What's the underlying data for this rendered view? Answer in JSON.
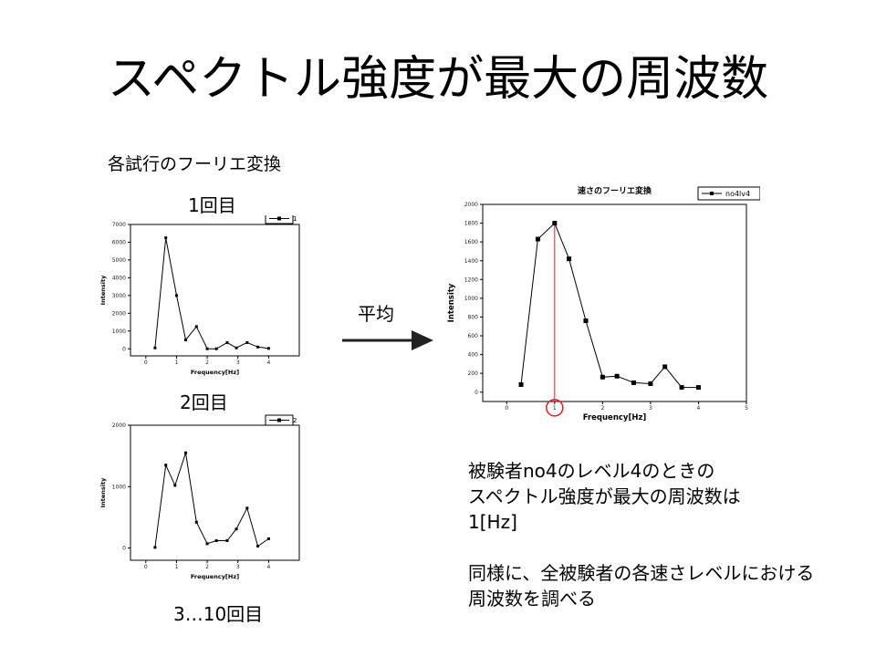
{
  "slide": {
    "title": "スペクトル強度が最大の周波数",
    "subtitle": "各試行のフーリエ変換",
    "trial1_label": "1回目",
    "trial2_label": "2回目",
    "trial3_label": "3…10回目",
    "average_label": "平均",
    "description": [
      "被験者no4のレベル4のときの",
      "スペクトル強度が最大の周波数は",
      "1[Hz]",
      "",
      "同様に、全被験者の各速さレベルにおける",
      "周波数を調べる"
    ]
  },
  "chart_data": [
    {
      "type": "line",
      "title": "",
      "xlabel": "Frequency[Hz]",
      "ylabel": "Intensity",
      "xlim": [
        -0.5,
        5
      ],
      "ylim": [
        -400,
        7000
      ],
      "xticks": [
        0,
        1,
        2,
        3,
        4
      ],
      "yticks": [
        0,
        1000,
        2000,
        3000,
        4000,
        5000,
        6000,
        7000
      ],
      "legend": "top-right",
      "series": [
        {
          "name": "1",
          "x": [
            0.3,
            0.65,
            1.0,
            1.3,
            1.65,
            2.0,
            2.3,
            2.65,
            2.95,
            3.3,
            3.65,
            4.0
          ],
          "values": [
            50,
            6250,
            3000,
            500,
            1250,
            0,
            0,
            350,
            50,
            350,
            100,
            20
          ]
        }
      ]
    },
    {
      "type": "line",
      "title": "",
      "xlabel": "Frequency[Hz]",
      "ylabel": "Intensity",
      "xlim": [
        -0.5,
        5
      ],
      "ylim": [
        -200,
        2000
      ],
      "xticks": [
        0,
        1,
        2,
        3,
        4
      ],
      "yticks": [
        0,
        1000,
        2000
      ],
      "legend": "top-right",
      "series": [
        {
          "name": "2",
          "x": [
            0.3,
            0.65,
            0.95,
            1.3,
            1.65,
            2.0,
            2.3,
            2.65,
            2.95,
            3.3,
            3.65,
            4.0
          ],
          "values": [
            10,
            1350,
            1020,
            1550,
            420,
            70,
            120,
            120,
            310,
            650,
            30,
            150
          ]
        }
      ]
    },
    {
      "type": "line",
      "title": "速さのフーリエ変換",
      "xlabel": "Frequency[Hz]",
      "ylabel": "Intensity",
      "xlim": [
        -0.5,
        5
      ],
      "ylim": [
        -100,
        2000
      ],
      "xticks": [
        0,
        1,
        2,
        3,
        4,
        5
      ],
      "yticks": [
        0,
        200,
        400,
        600,
        800,
        1000,
        1200,
        1400,
        1600,
        1800,
        2000
      ],
      "legend": "top-right",
      "highlight_x": 1,
      "series": [
        {
          "name": "no4lv4",
          "x": [
            0.3,
            0.65,
            1.0,
            1.3,
            1.65,
            2.0,
            2.3,
            2.65,
            3.0,
            3.3,
            3.65,
            4.0
          ],
          "values": [
            80,
            1630,
            1800,
            1420,
            760,
            160,
            170,
            100,
            90,
            270,
            50,
            50
          ]
        }
      ]
    }
  ]
}
